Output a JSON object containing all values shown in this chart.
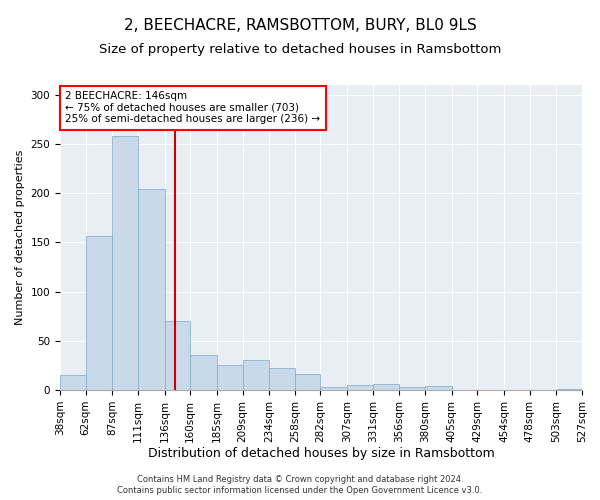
{
  "title1": "2, BEECHACRE, RAMSBOTTOM, BURY, BL0 9LS",
  "title2": "Size of property relative to detached houses in Ramsbottom",
  "xlabel": "Distribution of detached houses by size in Ramsbottom",
  "ylabel": "Number of detached properties",
  "footer1": "Contains HM Land Registry data © Crown copyright and database right 2024.",
  "footer2": "Contains public sector information licensed under the Open Government Licence v3.0.",
  "annotation_line1": "2 BEECHACRE: 146sqm",
  "annotation_line2": "← 75% of detached houses are smaller (703)",
  "annotation_line3": "25% of semi-detached houses are larger (236) →",
  "bar_color": "#c9d9ea",
  "bar_edge_color": "#7aaac8",
  "vline_color": "#cc0000",
  "vline_x": 146,
  "bin_edges": [
    38,
    62,
    87,
    111,
    136,
    160,
    185,
    209,
    234,
    258,
    282,
    307,
    331,
    356,
    380,
    405,
    429,
    454,
    478,
    503,
    527
  ],
  "bar_heights": [
    15,
    157,
    258,
    204,
    70,
    36,
    25,
    30,
    22,
    16,
    3,
    5,
    6,
    3,
    4,
    0,
    0,
    0,
    0,
    1
  ],
  "ylim": [
    0,
    310
  ],
  "yticks": [
    0,
    50,
    100,
    150,
    200,
    250,
    300
  ],
  "bg_color": "#e8eef4",
  "fig_bg": "#ffffff",
  "title1_fontsize": 11,
  "title2_fontsize": 9.5,
  "xlabel_fontsize": 9,
  "ylabel_fontsize": 8,
  "tick_fontsize": 7.5,
  "footer_fontsize": 6,
  "annot_fontsize": 7.5
}
